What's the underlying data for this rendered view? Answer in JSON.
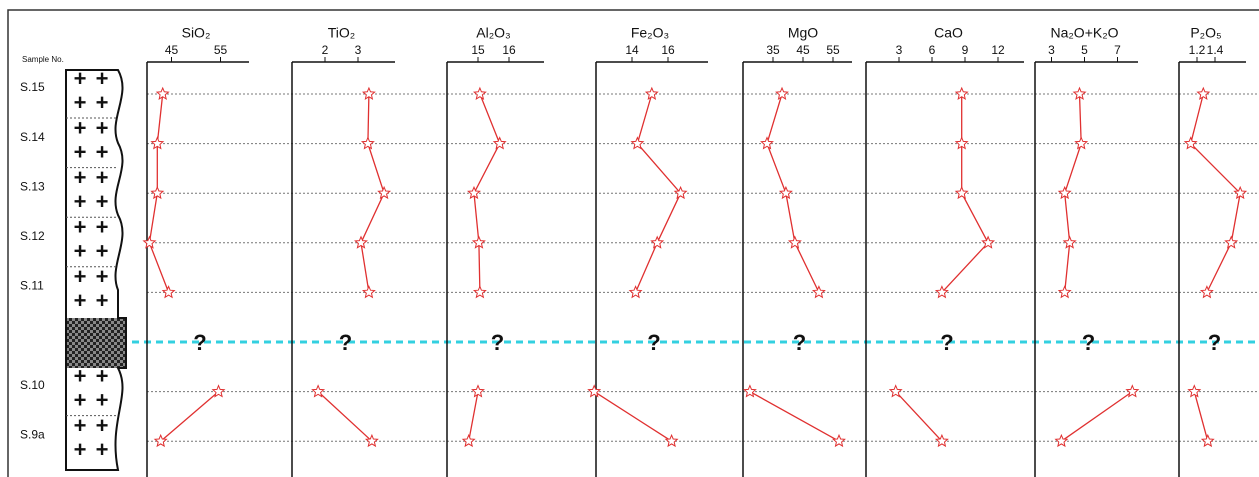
{
  "sample_label": "Sample No.",
  "samples": [
    "S.15",
    "S.14",
    "S.13",
    "S.12",
    "S.11",
    null,
    "S.10",
    "S.9a"
  ],
  "chart_data": [
    {
      "type": "line",
      "title": "SiO₂",
      "xlim": [
        40,
        60
      ],
      "xticks": [
        45,
        55
      ],
      "color": "#e03030",
      "annotation": "?",
      "values": [
        43.2,
        42.1,
        42.1,
        40.5,
        44.4,
        null,
        54.6,
        42.8
      ]
    },
    {
      "type": "line",
      "title": "TiO₂",
      "xlim": [
        1,
        4
      ],
      "xticks": [
        2,
        3
      ],
      "color": "#e03030",
      "annotation": "?",
      "values": [
        3.33,
        3.3,
        3.79,
        3.09,
        3.33,
        null,
        1.79,
        3.42
      ]
    },
    {
      "type": "line",
      "title": "Al₂O₃",
      "xlim": [
        14,
        17
      ],
      "xticks": [
        15,
        16
      ],
      "color": "#e03030",
      "annotation": "?",
      "values": [
        15.06,
        15.7,
        14.87,
        15.03,
        15.06,
        null,
        15,
        14.7
      ]
    },
    {
      "type": "line",
      "title": "Fe₂O₃",
      "xlim": [
        12,
        18
      ],
      "xticks": [
        14,
        16
      ],
      "color": "#e03030",
      "annotation": "?",
      "values": [
        15.1,
        14.3,
        16.7,
        15.4,
        14.2,
        null,
        11.9,
        16.2
      ]
    },
    {
      "type": "line",
      "title": "MgO",
      "xlim": [
        25,
        60
      ],
      "xticks": [
        35,
        45,
        55
      ],
      "color": "#e03030",
      "annotation": "?",
      "values": [
        38,
        33,
        39.3,
        42.3,
        50.3,
        null,
        27.3,
        57
      ]
    },
    {
      "type": "line",
      "title": "CaO",
      "xlim": [
        0,
        14
      ],
      "xticks": [
        3,
        6,
        9,
        12
      ],
      "color": "#e03030",
      "annotation": "?",
      "values": [
        8.7,
        8.7,
        8.7,
        11.1,
        6.9,
        null,
        2.7,
        6.9
      ]
    },
    {
      "type": "line",
      "title": "Na₂O+K₂O",
      "xlim": [
        2,
        8
      ],
      "xticks": [
        3,
        5,
        7
      ],
      "color": "#e03030",
      "annotation": "?",
      "values": [
        4.7,
        4.8,
        3.8,
        4.1,
        3.8,
        null,
        7.9,
        3.6
      ]
    },
    {
      "type": "line",
      "title": "P₂O₅",
      "xlim": [
        1,
        1.7
      ],
      "xticks": [
        1.2,
        1.4
      ],
      "color": "#e03030",
      "annotation": "?",
      "values": [
        1.27,
        1.13,
        1.68,
        1.58,
        1.31,
        null,
        1.17,
        1.32
      ]
    }
  ]
}
